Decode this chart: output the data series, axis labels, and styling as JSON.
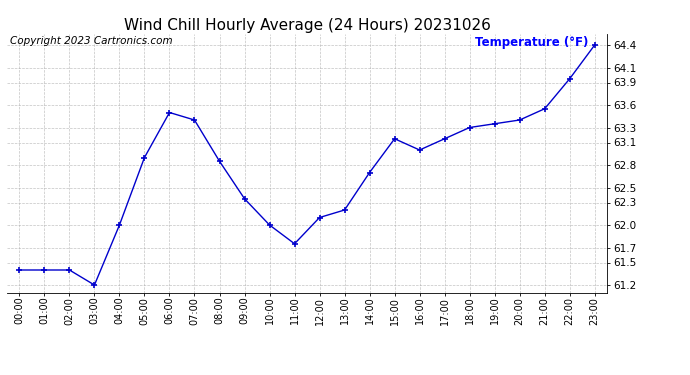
{
  "title": "Wind Chill Hourly Average (24 Hours) 20231026",
  "copyright_text": "Copyright 2023 Cartronics.com",
  "legend_label": "Temperature (°F)",
  "hours": [
    "00:00",
    "01:00",
    "02:00",
    "03:00",
    "04:00",
    "05:00",
    "06:00",
    "07:00",
    "08:00",
    "09:00",
    "10:00",
    "11:00",
    "12:00",
    "13:00",
    "14:00",
    "15:00",
    "16:00",
    "17:00",
    "18:00",
    "19:00",
    "20:00",
    "21:00",
    "22:00",
    "23:00"
  ],
  "values": [
    61.4,
    61.4,
    61.4,
    61.2,
    62.0,
    62.9,
    63.5,
    63.4,
    62.85,
    62.35,
    62.0,
    61.75,
    62.1,
    62.2,
    62.7,
    63.15,
    63.0,
    63.15,
    63.3,
    63.35,
    63.4,
    63.55,
    63.95,
    64.4
  ],
  "ylim": [
    61.1,
    64.55
  ],
  "yticks": [
    61.2,
    61.5,
    61.7,
    62.0,
    62.3,
    62.5,
    62.8,
    63.1,
    63.3,
    63.6,
    63.9,
    64.1,
    64.4
  ],
  "line_color": "#0000cc",
  "marker": "+",
  "marker_color": "#0000cc",
  "grid_color": "#aaaaaa",
  "bg_color": "#ffffff",
  "title_fontsize": 11,
  "copyright_fontsize": 7.5,
  "legend_color": "#0000ff",
  "legend_fontsize": 8.5,
  "axes_label_color": "#000000",
  "tick_fontsize": 7.5,
  "xtick_fontsize": 7
}
